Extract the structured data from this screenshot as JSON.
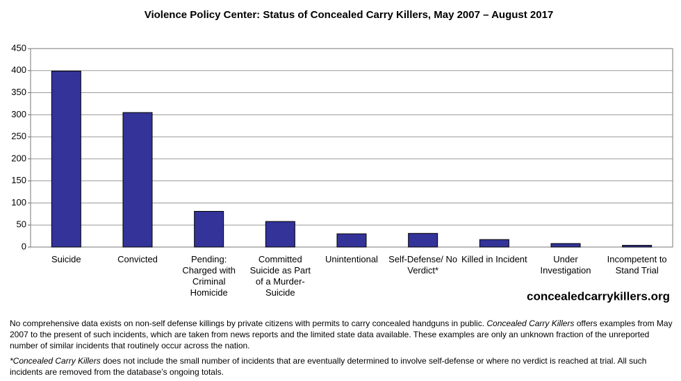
{
  "chart_data": {
    "type": "bar",
    "title": "Violence Policy Center: Status of Concealed Carry Killers, May 2007 – August 2017",
    "categories": [
      "Suicide",
      "Convicted",
      "Pending: Charged with Criminal Homicide",
      "Committed Suicide as Part of a Murder-Suicide",
      "Unintentional",
      "Self-Defense/ No Verdict*",
      "Killed in Incident",
      "Under Investigation",
      "Incompetent to Stand Trial"
    ],
    "values": [
      399,
      305,
      81,
      58,
      30,
      31,
      17,
      8,
      4
    ],
    "color": "#333399",
    "ylim": [
      0,
      450
    ],
    "yticks": [
      0,
      50,
      100,
      150,
      200,
      250,
      300,
      350,
      400,
      450
    ],
    "grid": true,
    "source": "concealedcarrykillers.org"
  },
  "notes": [
    [
      "No comprehensive data exists on non-self defense killings by private citizens with permits to carry concealed handguns in public. ",
      "Concealed Carry Killers",
      " offers examples from May 2007 to the present of such incidents, which are taken from news reports and the limited state data available. These examples are only an unknown fraction of the unreported number of similar incidents that routinely occur across the nation."
    ],
    [
      "*Concealed Carry Killers",
      " does not include the small number of incidents that are eventually determined to involve self-defense or where no verdict is reached at trial. All such incidents are removed from the database’s ongoing totals."
    ]
  ]
}
